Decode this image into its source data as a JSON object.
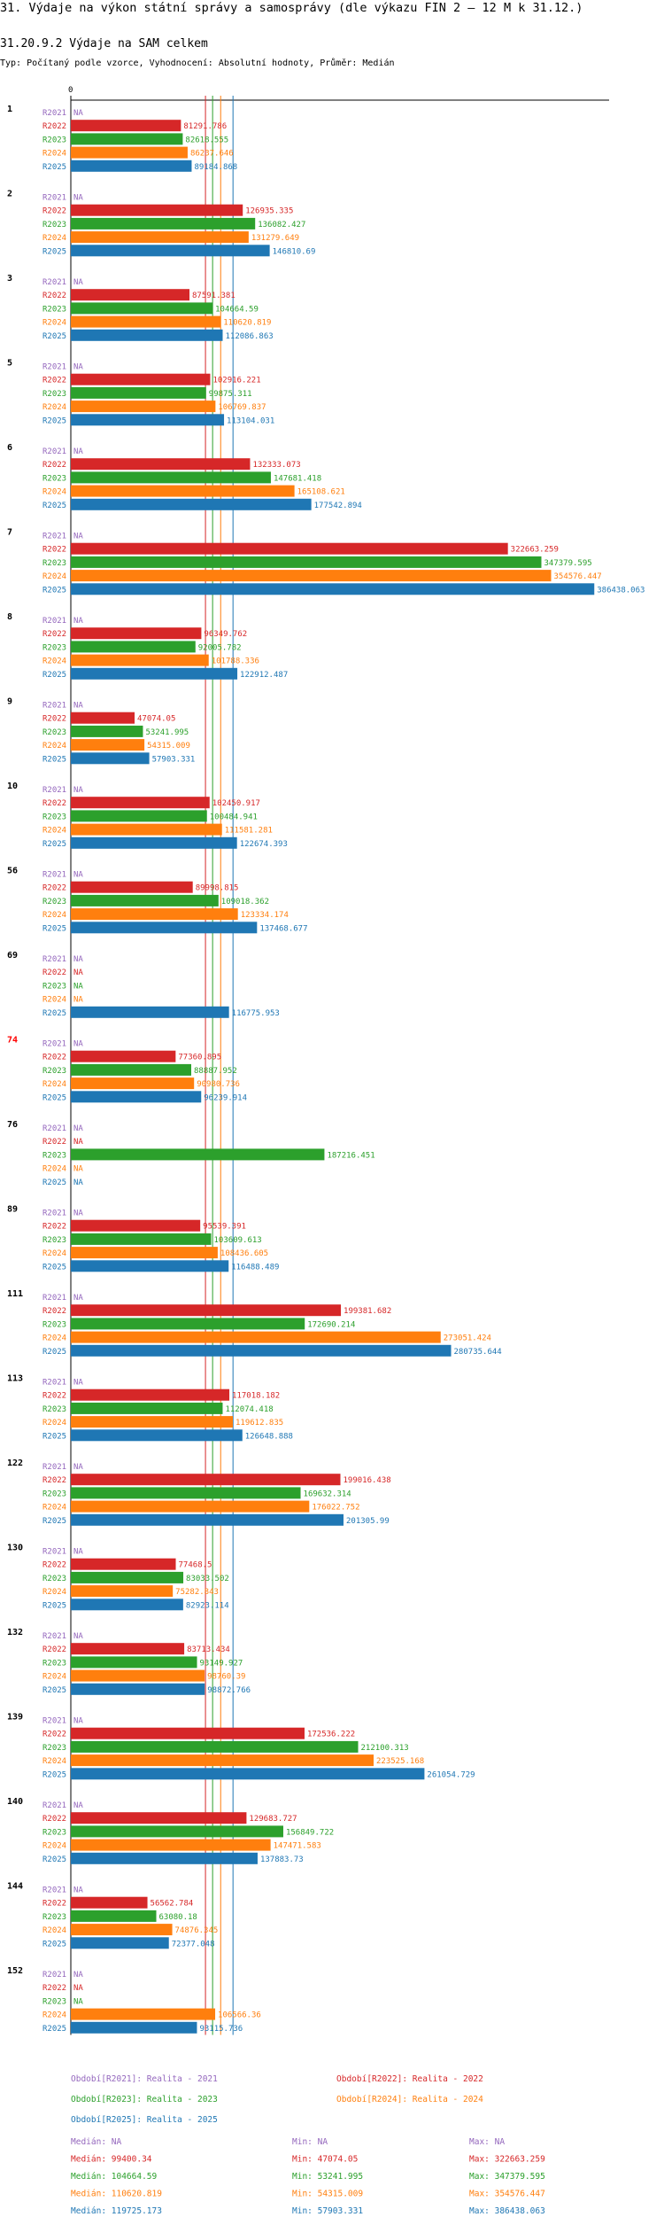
{
  "header": {
    "title": "31. Výdaje na výkon státní správy a samosprávy (dle výkazu FIN 2 – 12 M k 31.12.)",
    "subtitle": "31.20.9.2 Výdaje na SAM celkem",
    "meta": "Typ: Počítaný podle vzorce, Vyhodnocení: Absolutní hodnoty, Průměr: Medián"
  },
  "colors": {
    "R2021": "#9467bd",
    "R2022": "#d62728",
    "R2023": "#2ca02c",
    "R2024": "#ff7f0e",
    "R2025": "#1f77b4",
    "highlight": "#ff0000"
  },
  "chart_data": {
    "type": "bar",
    "orientation": "horizontal",
    "axis_zero_label": "0",
    "series_names": [
      "R2021",
      "R2022",
      "R2023",
      "R2024",
      "R2025"
    ],
    "na_label": "NA",
    "groups": [
      {
        "id": "1",
        "highlight": false,
        "values": [
          null,
          81291.786,
          82618.555,
          86237.646,
          89184.868
        ]
      },
      {
        "id": "2",
        "highlight": false,
        "values": [
          null,
          126935.335,
          136082.427,
          131279.649,
          146810.69
        ]
      },
      {
        "id": "3",
        "highlight": false,
        "values": [
          null,
          87591.381,
          104664.59,
          110620.819,
          112086.863
        ]
      },
      {
        "id": "5",
        "highlight": false,
        "values": [
          null,
          102916.221,
          99875.311,
          106769.837,
          113104.031
        ]
      },
      {
        "id": "6",
        "highlight": false,
        "values": [
          null,
          132333.073,
          147681.418,
          165108.621,
          177542.894
        ]
      },
      {
        "id": "7",
        "highlight": false,
        "values": [
          null,
          322663.259,
          347379.595,
          354576.447,
          386438.063
        ]
      },
      {
        "id": "8",
        "highlight": false,
        "values": [
          null,
          96349.762,
          92005.782,
          101788.336,
          122912.487
        ]
      },
      {
        "id": "9",
        "highlight": false,
        "values": [
          null,
          47074.05,
          53241.995,
          54315.009,
          57903.331
        ]
      },
      {
        "id": "10",
        "highlight": false,
        "values": [
          null,
          102450.917,
          100484.941,
          111581.281,
          122674.393
        ]
      },
      {
        "id": "56",
        "highlight": false,
        "values": [
          null,
          89998.815,
          109018.362,
          123334.174,
          137468.677
        ]
      },
      {
        "id": "69",
        "highlight": false,
        "values": [
          null,
          null,
          null,
          null,
          116775.953
        ]
      },
      {
        "id": "74",
        "highlight": true,
        "values": [
          null,
          77360.895,
          88887.952,
          90980.736,
          96239.914
        ]
      },
      {
        "id": "76",
        "highlight": false,
        "values": [
          null,
          null,
          187216.451,
          null,
          null
        ]
      },
      {
        "id": "89",
        "highlight": false,
        "values": [
          null,
          95539.391,
          103609.613,
          108436.605,
          116488.489
        ]
      },
      {
        "id": "111",
        "highlight": false,
        "values": [
          null,
          199381.682,
          172690.214,
          273051.424,
          280735.644
        ]
      },
      {
        "id": "113",
        "highlight": false,
        "values": [
          null,
          117018.182,
          112074.418,
          119612.835,
          126648.888
        ]
      },
      {
        "id": "122",
        "highlight": false,
        "values": [
          null,
          199016.438,
          169632.314,
          176022.752,
          201305.99
        ]
      },
      {
        "id": "130",
        "highlight": false,
        "values": [
          null,
          77468.5,
          83033.502,
          75282.843,
          82923.114
        ]
      },
      {
        "id": "132",
        "highlight": false,
        "values": [
          null,
          83713.434,
          93149.927,
          98760.39,
          98872.766
        ]
      },
      {
        "id": "139",
        "highlight": false,
        "values": [
          null,
          172536.222,
          212100.313,
          223525.168,
          261054.729
        ]
      },
      {
        "id": "140",
        "highlight": false,
        "values": [
          null,
          129683.727,
          156849.722,
          147471.583,
          137883.73
        ]
      },
      {
        "id": "144",
        "highlight": false,
        "values": [
          null,
          56562.784,
          63080.18,
          74876.345,
          72377.048
        ]
      },
      {
        "id": "152",
        "highlight": false,
        "values": [
          null,
          null,
          null,
          106566.36,
          93115.736
        ]
      }
    ],
    "reference_lines": [
      {
        "series": "R2022",
        "median": 99400.34
      },
      {
        "series": "R2023",
        "median": 104664.59
      },
      {
        "series": "R2024",
        "median": 110620.819
      },
      {
        "series": "R2025",
        "median": 119725.173
      }
    ],
    "x_max": 386438.063
  },
  "legend": {
    "items": [
      {
        "series": "R2021",
        "label": "Období[R2021]: Realita - 2021"
      },
      {
        "series": "R2022",
        "label": "Období[R2022]: Realita - 2022"
      },
      {
        "series": "R2023",
        "label": "Období[R2023]: Realita - 2023"
      },
      {
        "series": "R2024",
        "label": "Období[R2024]: Realita - 2024"
      },
      {
        "series": "R2025",
        "label": "Období[R2025]: Realita - 2025"
      }
    ]
  },
  "stats": {
    "rows": [
      {
        "series": "R2021",
        "median": "Medián: NA",
        "min": "Min: NA",
        "max": "Max: NA"
      },
      {
        "series": "R2022",
        "median": "Medián: 99400.34",
        "min": "Min: 47074.05",
        "max": "Max: 322663.259"
      },
      {
        "series": "R2023",
        "median": "Medián: 104664.59",
        "min": "Min: 53241.995",
        "max": "Max: 347379.595"
      },
      {
        "series": "R2024",
        "median": "Medián: 110620.819",
        "min": "Min: 54315.009",
        "max": "Max: 354576.447"
      },
      {
        "series": "R2025",
        "median": "Medián: 119725.173",
        "min": "Min: 57903.331",
        "max": "Max: 386438.063"
      }
    ]
  }
}
